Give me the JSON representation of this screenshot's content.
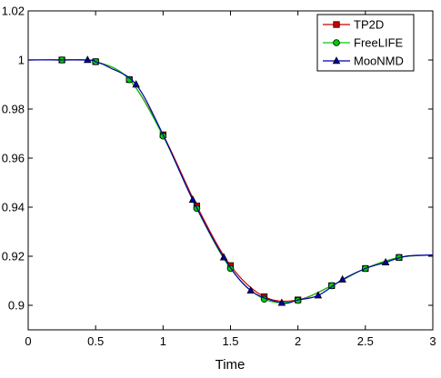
{
  "chart_data": {
    "type": "line",
    "title": "",
    "xlabel": "Time",
    "ylabel": "",
    "xlim": [
      0,
      3
    ],
    "ylim": [
      0.89,
      1.02
    ],
    "grid": false,
    "legend_position": "top-right",
    "x_ticks": [
      0,
      0.5,
      1,
      1.5,
      2,
      2.5,
      3
    ],
    "x_tick_labels": [
      "0",
      "0.5",
      "1",
      "1.5",
      "2",
      "2.5",
      "3"
    ],
    "y_ticks": [
      0.9,
      0.92,
      0.94,
      0.96,
      0.98,
      1,
      1.02
    ],
    "y_tick_labels": [
      "0.9",
      "0.92",
      "0.94",
      "0.96",
      "0.98",
      "1",
      "1.02"
    ],
    "series": [
      {
        "name": "TP2D",
        "color": "#cc0000",
        "marker": "square",
        "x": [
          0,
          0.25,
          0.5,
          0.75,
          1.0,
          1.25,
          1.5,
          1.75,
          2.0,
          2.25,
          2.5,
          2.75,
          3.0
        ],
        "y": [
          1.0,
          1.0,
          0.9993,
          0.992,
          0.9695,
          0.9405,
          0.9162,
          0.9035,
          0.9022,
          0.908,
          0.915,
          0.9195,
          0.9205
        ],
        "marker_x": [
          0.25,
          0.5,
          0.75,
          1.0,
          1.25,
          1.5,
          1.75,
          2.0,
          2.25,
          2.5,
          2.75
        ],
        "marker_y": [
          1.0,
          0.9993,
          0.992,
          0.9695,
          0.9405,
          0.9162,
          0.9035,
          0.9022,
          0.908,
          0.915,
          0.9195
        ]
      },
      {
        "name": "FreeLIFE",
        "color": "#00cc00",
        "marker": "circle",
        "x": [
          0,
          0.25,
          0.5,
          0.75,
          1.0,
          1.25,
          1.5,
          1.75,
          2.0,
          2.25,
          2.5,
          2.75,
          3.0
        ],
        "y": [
          1.0,
          1.0,
          0.9993,
          0.992,
          0.969,
          0.9395,
          0.915,
          0.9025,
          0.902,
          0.908,
          0.915,
          0.9195,
          0.9205
        ],
        "marker_x": [
          0.25,
          0.5,
          0.75,
          1.0,
          1.25,
          1.5,
          1.75,
          2.0,
          2.25,
          2.5,
          2.75
        ],
        "marker_y": [
          1.0,
          0.9993,
          0.992,
          0.969,
          0.9395,
          0.915,
          0.9025,
          0.902,
          0.908,
          0.915,
          0.9195
        ]
      },
      {
        "name": "MooNMD",
        "color": "#0000aa",
        "marker": "triangle",
        "x": [
          0,
          0.44,
          0.5,
          0.6,
          0.8,
          1.0,
          1.22,
          1.45,
          1.65,
          1.88,
          2.0,
          2.15,
          2.33,
          2.5,
          2.65,
          2.8,
          3.0
        ],
        "y": [
          1.0,
          1.0,
          0.9993,
          0.997,
          0.99,
          0.9695,
          0.943,
          0.9195,
          0.906,
          0.901,
          0.9022,
          0.904,
          0.9105,
          0.915,
          0.9175,
          0.92,
          0.9205
        ],
        "marker_x": [
          0.44,
          0.8,
          1.22,
          1.45,
          1.65,
          1.88,
          2.15,
          2.33,
          2.65
        ],
        "marker_y": [
          1.0,
          0.99,
          0.943,
          0.9195,
          0.906,
          0.901,
          0.904,
          0.9105,
          0.9175
        ]
      }
    ]
  }
}
